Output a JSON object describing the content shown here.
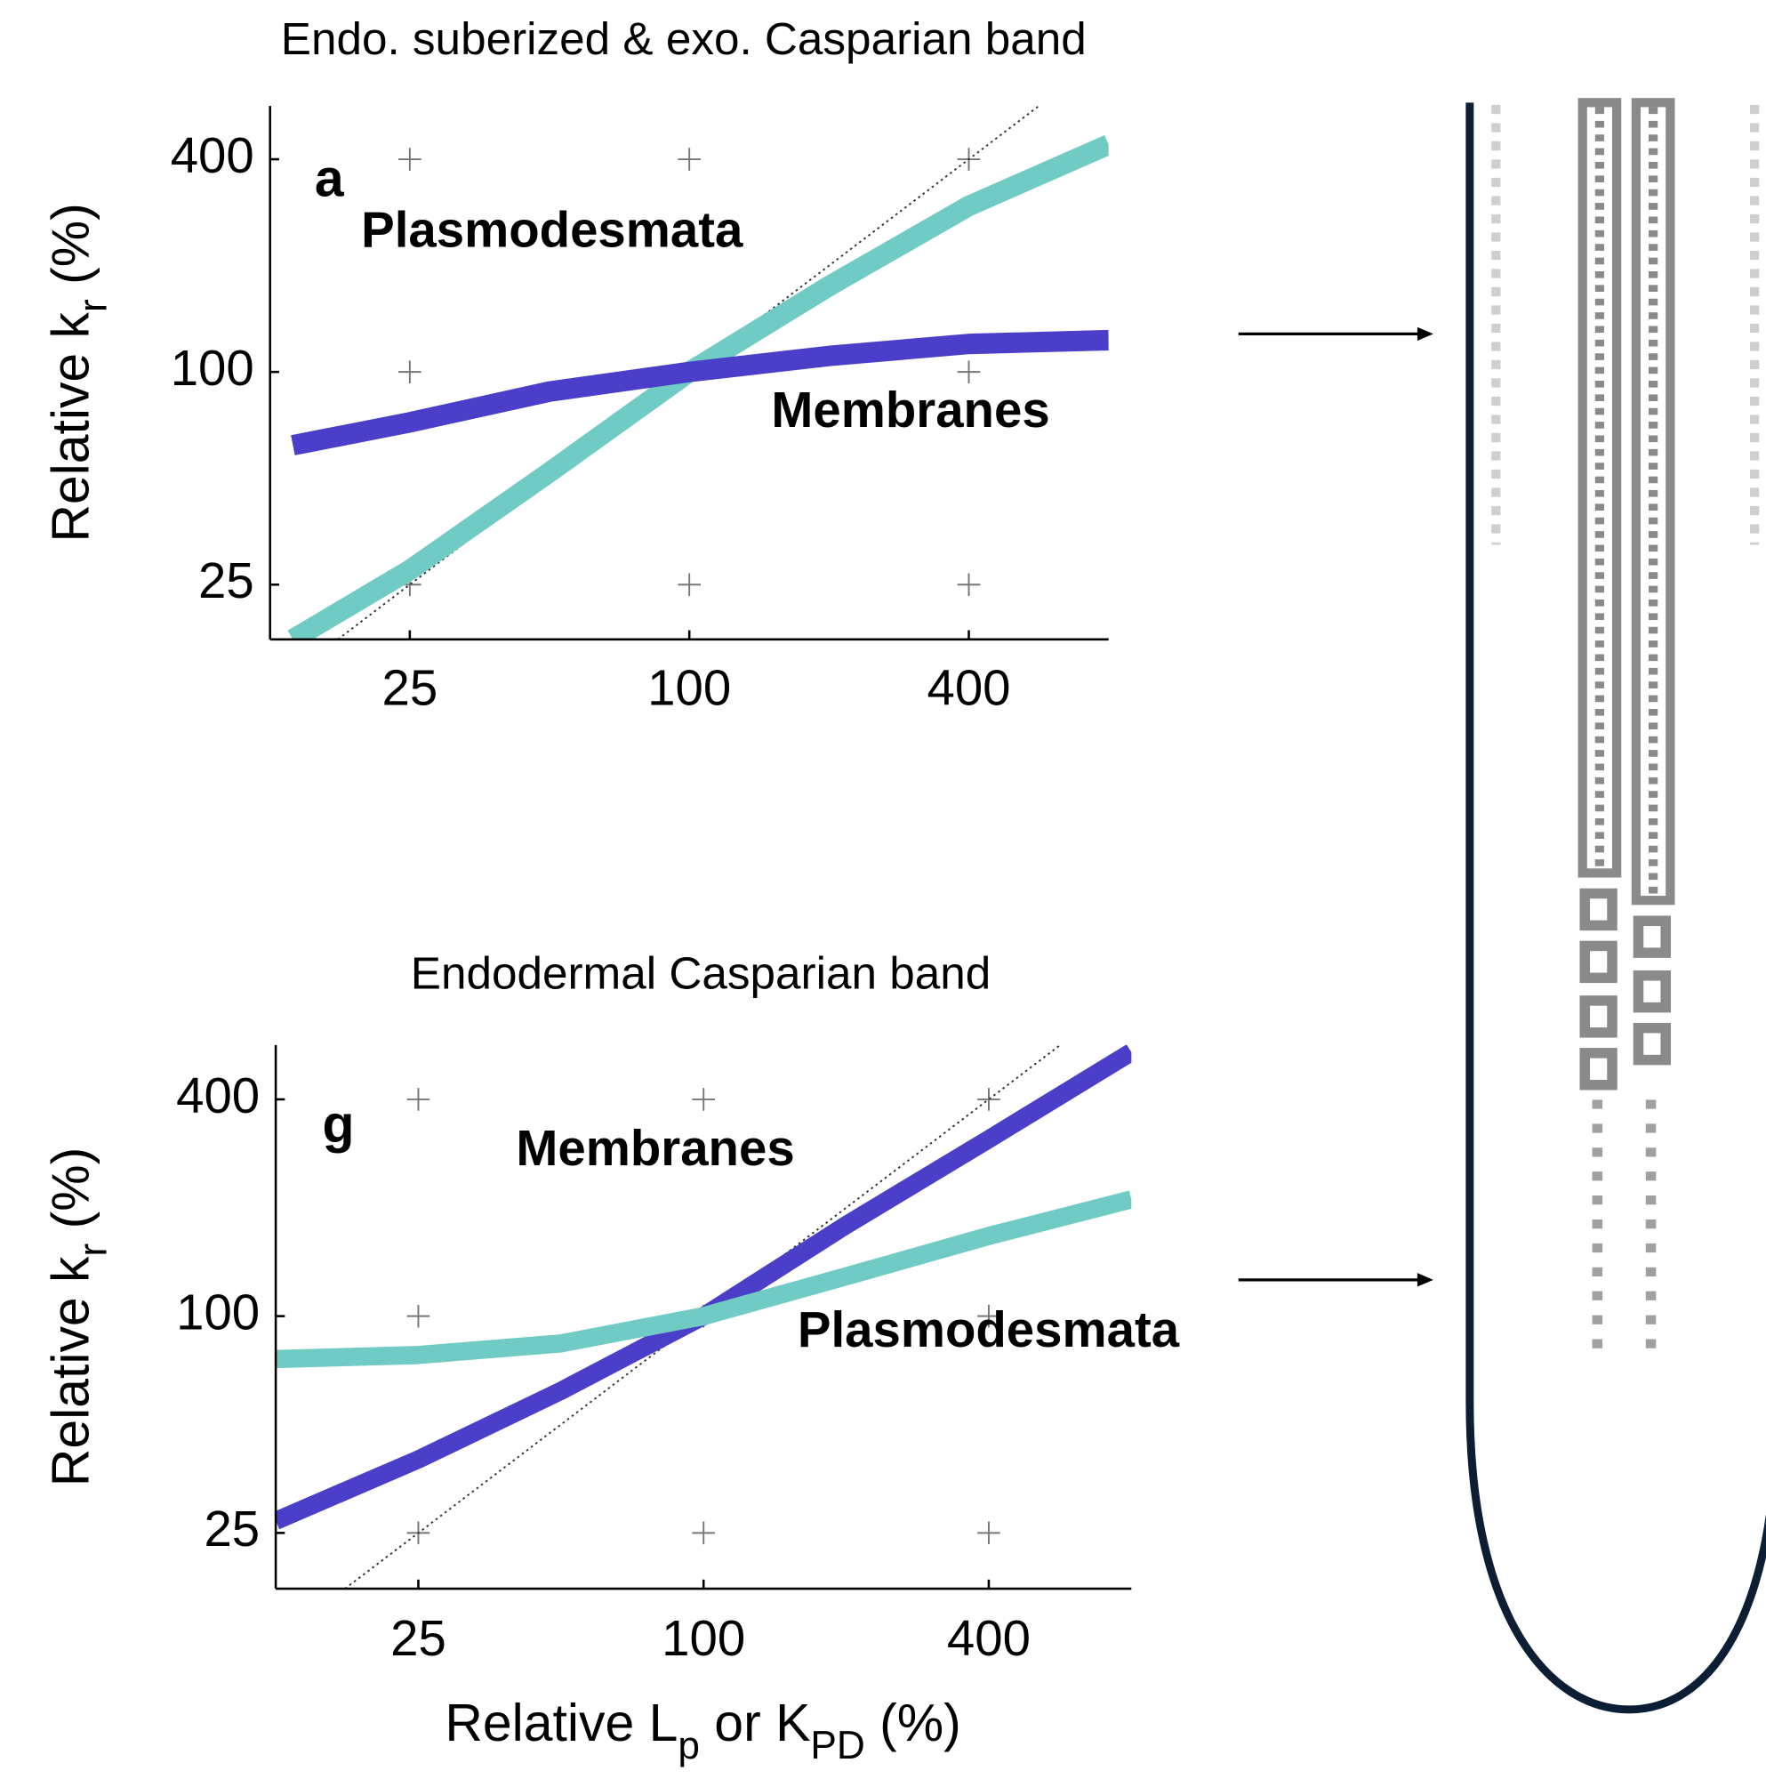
{
  "chart_data": [
    {
      "type": "line",
      "title": "Endo. suberized & exo. Casparian band",
      "panel_label": "a",
      "y_label": [
        {
          "text": "Relative k"
        },
        {
          "text": "r",
          "sub": true
        },
        {
          "text": " (%)"
        }
      ],
      "x": [
        14,
        25,
        50,
        100,
        200,
        400,
        800
      ],
      "series": [
        {
          "name": "Plasmodesmata",
          "color": "#6fcbc4",
          "label_color": "#3ec3be",
          "values": [
            17.5,
            27.5,
            52,
            100,
            175,
            295,
            440
          ]
        },
        {
          "name": "Membranes",
          "color": "#4b3fc9",
          "label_color": "#1d35c6",
          "values": [
            62,
            72,
            88,
            100,
            111,
            120,
            123
          ]
        }
      ],
      "x_scale": "log",
      "y_scale": "log",
      "xlim": [
        12.5,
        800
      ],
      "ylim": [
        17.5,
        566
      ],
      "xticks": [
        25,
        100,
        400
      ],
      "yticks": [
        25,
        100,
        400
      ],
      "grid": "plus"
    },
    {
      "type": "line",
      "title": "Endodermal Casparian band",
      "panel_label": "g",
      "y_label": [
        {
          "text": "Relative k"
        },
        {
          "text": "r",
          "sub": true
        },
        {
          "text": " (%)"
        }
      ],
      "x_label": [
        {
          "text": "Relative L"
        },
        {
          "text": "p",
          "sub": true
        },
        {
          "text": " or K"
        },
        {
          "text": "PD",
          "sub": true
        },
        {
          "text": " (%)"
        }
      ],
      "x": [
        12.5,
        25,
        50,
        100,
        200,
        400,
        800
      ],
      "series": [
        {
          "name": "Membranes",
          "color": "#4b3fc9",
          "label_color": "#1d35c6",
          "values": [
            27,
            40,
            62,
            100,
            179,
            310,
            541
          ]
        },
        {
          "name": "Plasmodesmata",
          "color": "#6fcbc4",
          "label_color": "#3ec3be",
          "values": [
            76,
            78,
            84,
            100,
            129,
            167,
            211
          ]
        }
      ],
      "x_scale": "log",
      "y_scale": "log",
      "xlim": [
        12.5,
        800
      ],
      "ylim": [
        17.5,
        566
      ],
      "xticks": [
        25,
        100,
        400
      ],
      "yticks": [
        25,
        100,
        400
      ],
      "grid": "plus"
    }
  ]
}
